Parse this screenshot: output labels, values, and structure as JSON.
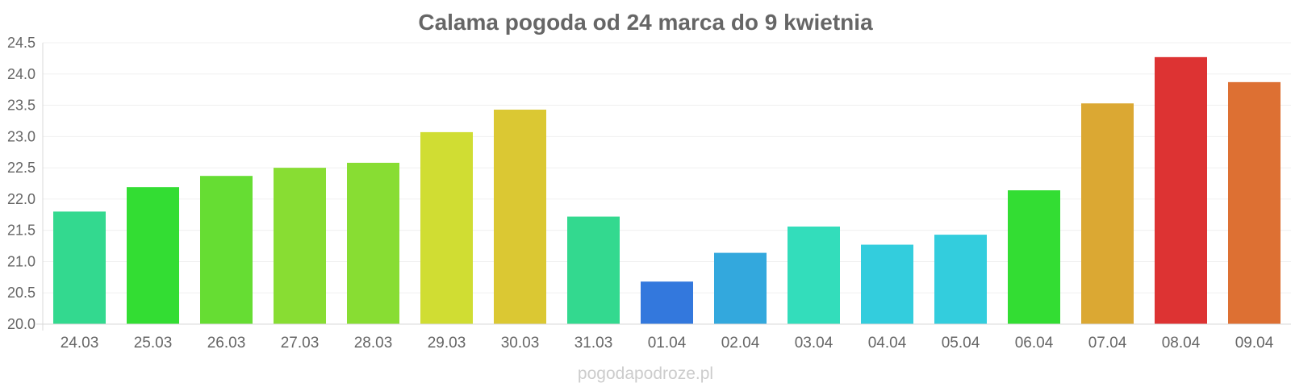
{
  "chart_data": {
    "type": "bar",
    "title": "Calama pogoda od 24 marca do 9 kwietnia",
    "xlabel": "",
    "ylabel": "",
    "ylim": [
      20.0,
      24.5
    ],
    "yticks": [
      "20.0",
      "20.5",
      "21.0",
      "21.5",
      "22.0",
      "22.5",
      "23.0",
      "23.5",
      "24.0",
      "24.5"
    ],
    "grid": true,
    "categories": [
      "24.03",
      "25.03",
      "26.03",
      "27.03",
      "28.03",
      "29.03",
      "30.03",
      "31.03",
      "01.04",
      "02.04",
      "03.04",
      "04.04",
      "05.04",
      "06.04",
      "07.04",
      "08.04",
      "09.04"
    ],
    "values": [
      21.8,
      22.19,
      22.37,
      22.5,
      22.58,
      23.07,
      23.43,
      21.72,
      20.68,
      21.14,
      21.56,
      21.27,
      21.43,
      22.14,
      23.53,
      24.27,
      23.87
    ],
    "colors": [
      "#33d98f",
      "#33dd33",
      "#66dd33",
      "#88dd33",
      "#88dd33",
      "#d0dd33",
      "#dbc833",
      "#33d98f",
      "#3378dd",
      "#33a8dd",
      "#33ddbb",
      "#33cddd",
      "#33cddd",
      "#33dd33",
      "#dba833",
      "#dd3333",
      "#dd7033"
    ]
  },
  "watermark": "pogodapodroze.pl"
}
